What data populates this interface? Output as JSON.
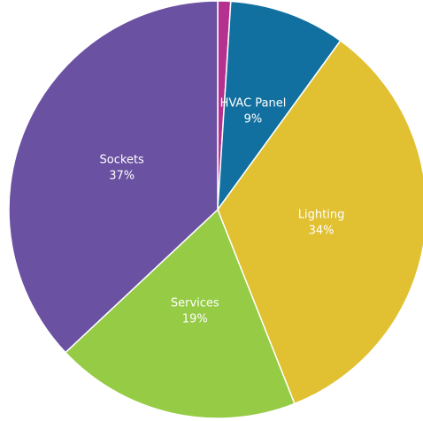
{
  "chart_data": {
    "type": "pie",
    "categories": [
      null,
      "HVAC Panel",
      "Lighting",
      "Services",
      "Sockets"
    ],
    "values": [
      1,
      9,
      34,
      19,
      37
    ],
    "value_labels": [
      null,
      "9%",
      "34%",
      "19%",
      "37%"
    ],
    "colors": [
      "#b4318f",
      "#11709f",
      "#e1c132",
      "#95cb45",
      "#6a51a1"
    ]
  }
}
